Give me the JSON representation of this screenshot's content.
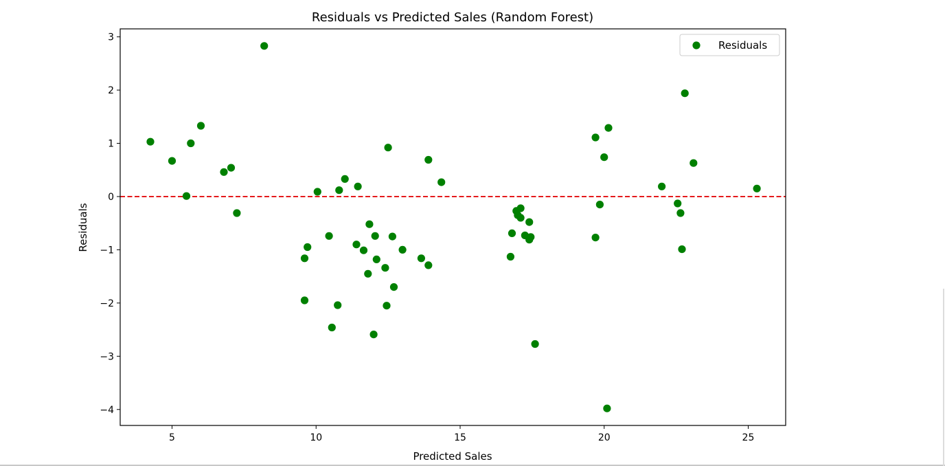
{
  "chart_data": {
    "type": "scatter",
    "title": "Residuals vs Predicted Sales (Random Forest)",
    "xlabel": "Predicted Sales",
    "ylabel": "Residuals",
    "xlim": [
      3.2,
      26.3
    ],
    "ylim": [
      -4.3,
      3.15
    ],
    "xticks": [
      5,
      10,
      15,
      20,
      25
    ],
    "yticks": [
      -4,
      -3,
      -2,
      -1,
      0,
      1,
      2,
      3
    ],
    "xtick_labels": [
      "5",
      "10",
      "15",
      "20",
      "25"
    ],
    "ytick_labels": [
      "−4",
      "−3",
      "−2",
      "−1",
      "0",
      "1",
      "2",
      "3"
    ],
    "grid": false,
    "legend_position": "top-right",
    "reference_line": {
      "y": 0,
      "style": "dashed",
      "color": "#e41a1c"
    },
    "series": [
      {
        "name": "Residuals",
        "color": "#008000",
        "points": [
          [
            4.25,
            1.03
          ],
          [
            5.0,
            0.67
          ],
          [
            5.5,
            0.01
          ],
          [
            5.65,
            1.0
          ],
          [
            6.0,
            1.33
          ],
          [
            6.8,
            0.46
          ],
          [
            7.05,
            0.54
          ],
          [
            7.25,
            -0.31
          ],
          [
            8.2,
            2.83
          ],
          [
            9.6,
            -1.16
          ],
          [
            9.6,
            -1.95
          ],
          [
            9.7,
            -0.95
          ],
          [
            10.05,
            0.09
          ],
          [
            10.45,
            -0.74
          ],
          [
            10.55,
            -2.46
          ],
          [
            10.75,
            -2.04
          ],
          [
            10.8,
            0.12
          ],
          [
            11.0,
            0.33
          ],
          [
            11.4,
            -0.9
          ],
          [
            11.45,
            0.19
          ],
          [
            11.65,
            -1.01
          ],
          [
            11.8,
            -1.45
          ],
          [
            11.85,
            -0.52
          ],
          [
            12.0,
            -2.59
          ],
          [
            12.05,
            -0.74
          ],
          [
            12.1,
            -1.18
          ],
          [
            12.4,
            -1.34
          ],
          [
            12.45,
            -2.05
          ],
          [
            12.5,
            0.92
          ],
          [
            12.65,
            -0.75
          ],
          [
            12.7,
            -1.7
          ],
          [
            13.0,
            -1.0
          ],
          [
            13.65,
            -1.16
          ],
          [
            13.9,
            -1.29
          ],
          [
            13.9,
            0.69
          ],
          [
            14.35,
            0.27
          ],
          [
            16.75,
            -1.13
          ],
          [
            16.8,
            -0.69
          ],
          [
            16.95,
            -0.27
          ],
          [
            17.0,
            -0.35
          ],
          [
            17.1,
            -0.22
          ],
          [
            17.1,
            -0.4
          ],
          [
            17.25,
            -0.73
          ],
          [
            17.4,
            -0.48
          ],
          [
            17.4,
            -0.81
          ],
          [
            17.45,
            -0.76
          ],
          [
            17.6,
            -2.77
          ],
          [
            19.7,
            -0.77
          ],
          [
            19.7,
            1.11
          ],
          [
            19.85,
            -0.15
          ],
          [
            20.0,
            0.74
          ],
          [
            20.1,
            -3.98
          ],
          [
            20.15,
            1.29
          ],
          [
            22.0,
            0.19
          ],
          [
            22.55,
            -0.13
          ],
          [
            22.65,
            -0.31
          ],
          [
            22.7,
            -0.99
          ],
          [
            22.8,
            1.94
          ],
          [
            23.1,
            0.63
          ],
          [
            25.3,
            0.15
          ]
        ]
      }
    ]
  }
}
